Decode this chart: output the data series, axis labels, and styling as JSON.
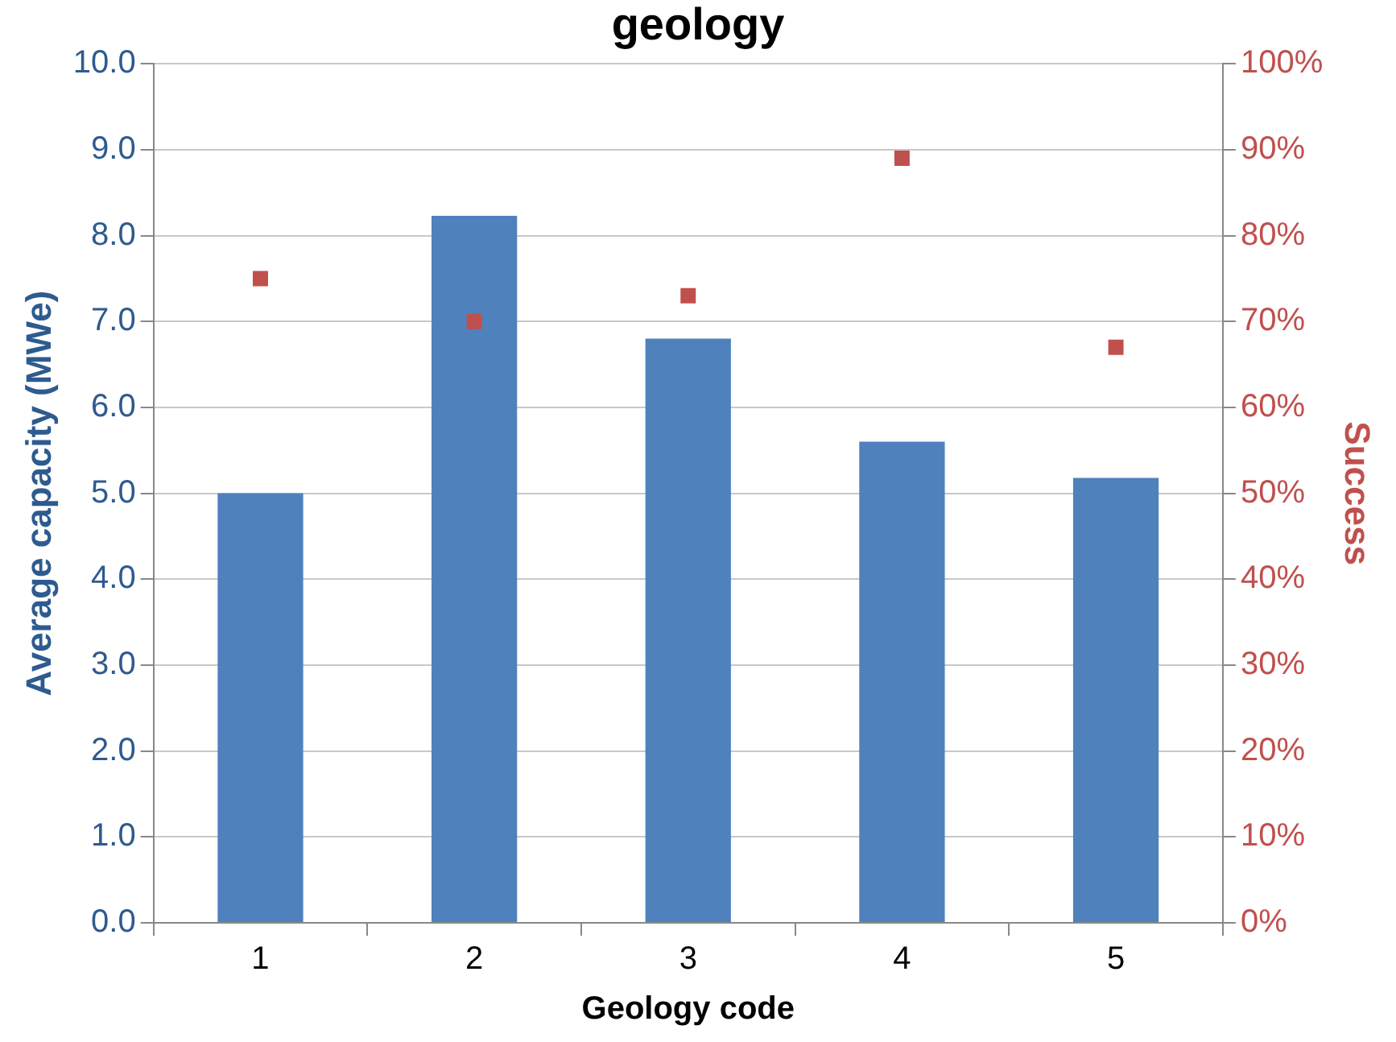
{
  "chart_data": {
    "type": "bar",
    "title": "geology",
    "xlabel": "Geology code",
    "ylabel": "Average capacity (MWe)",
    "y2label": "Success",
    "categories": [
      "1",
      "2",
      "3",
      "4",
      "5"
    ],
    "series": [
      {
        "color": "#4f81bd",
        "values": [
          5.0,
          8.23,
          6.8,
          5.6,
          5.18
        ]
      },
      {
        "type": "scatter",
        "axis": "y2",
        "color": "#c0504d",
        "marker": "square",
        "x": [
          "1",
          "2",
          "3",
          "4",
          "5"
        ],
        "values": [
          75,
          70,
          73,
          89,
          67
        ]
      }
    ],
    "ylim": [
      0,
      10
    ],
    "yticks": [
      {
        "value": 0,
        "label": "0.0"
      },
      {
        "value": 1,
        "label": "1.0"
      },
      {
        "value": 2,
        "label": "2.0"
      },
      {
        "value": 3,
        "label": "3.0"
      },
      {
        "value": 4,
        "label": "4.0"
      },
      {
        "value": 5,
        "label": "5.0"
      },
      {
        "value": 6,
        "label": "6.0"
      },
      {
        "value": 7,
        "label": "7.0"
      },
      {
        "value": 8,
        "label": "8.0"
      },
      {
        "value": 9,
        "label": "9.0"
      },
      {
        "value": 10,
        "label": "10.0"
      }
    ],
    "y2lim": [
      0,
      100
    ],
    "y2ticks": [
      {
        "value": 0,
        "label": "0%"
      },
      {
        "value": 10,
        "label": "10%"
      },
      {
        "value": 20,
        "label": "20%"
      },
      {
        "value": 30,
        "label": "30%"
      },
      {
        "value": 40,
        "label": "40%"
      },
      {
        "value": 50,
        "label": "50%"
      },
      {
        "value": 60,
        "label": "60%"
      },
      {
        "value": 70,
        "label": "70%"
      },
      {
        "value": 80,
        "label": "80%"
      },
      {
        "value": 90,
        "label": "90%"
      },
      {
        "value": 100,
        "label": "100%"
      }
    ],
    "grid": "y",
    "legend": false
  }
}
